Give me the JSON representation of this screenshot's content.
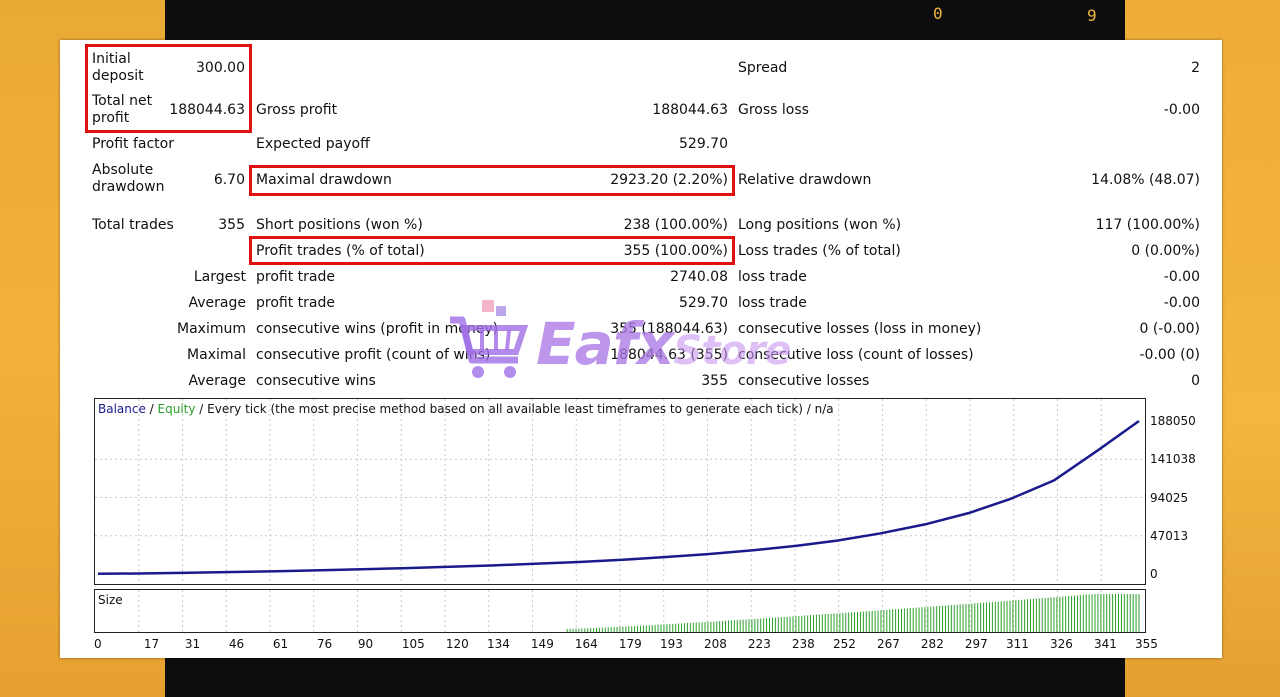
{
  "background": {
    "accent": "#f2b23b",
    "glyphs": [
      "0",
      "9"
    ]
  },
  "watermark": {
    "brand": "Eafx",
    "suffix": "Store"
  },
  "report": {
    "initial_deposit_label": "Initial deposit",
    "initial_deposit": "300.00",
    "spread_label": "Spread",
    "spread": "2",
    "total_net_profit_label": "Total net profit",
    "total_net_profit": "188044.63",
    "gross_profit_label": "Gross profit",
    "gross_profit": "188044.63",
    "gross_loss_label": "Gross loss",
    "gross_loss": "-0.00",
    "profit_factor_label": "Profit factor",
    "profit_factor": "",
    "expected_payoff_label": "Expected payoff",
    "expected_payoff": "529.70",
    "absolute_drawdown_label": "Absolute drawdown",
    "absolute_drawdown": "6.70",
    "maximal_drawdown_label": "Maximal drawdown",
    "maximal_drawdown": "2923.20 (2.20%)",
    "relative_drawdown_label": "Relative drawdown",
    "relative_drawdown": "14.08% (48.07)",
    "total_trades_label": "Total trades",
    "total_trades": "355",
    "short_positions_label": "Short positions (won %)",
    "short_positions": "238 (100.00%)",
    "long_positions_label": "Long positions (won %)",
    "long_positions": "117 (100.00%)",
    "profit_trades_label": "Profit trades (% of total)",
    "profit_trades": "355 (100.00%)",
    "loss_trades_label": "Loss trades (% of total)",
    "loss_trades": "0 (0.00%)",
    "largest_label": "Largest",
    "largest_profit_label": "profit trade",
    "largest_profit": "2740.08",
    "largest_loss_label": "loss trade",
    "largest_loss": "-0.00",
    "average_label": "Average",
    "average_profit_label": "profit trade",
    "average_profit": "529.70",
    "average_loss_label": "loss trade",
    "average_loss": "-0.00",
    "maximum_label": "Maximum",
    "max_cons_wins_label": "consecutive wins (profit in money)",
    "max_cons_wins": "355 (188044.63)",
    "max_cons_losses_label": "consecutive losses (loss in money)",
    "max_cons_losses": "0 (-0.00)",
    "maximal_label": "Maximal",
    "maximal_cons_profit_label": "consecutive profit (count of wins)",
    "maximal_cons_profit": "188044.63 (355)",
    "maximal_cons_loss_label": "consecutive loss (count of losses)",
    "maximal_cons_loss": "-0.00 (0)",
    "average2_label": "Average",
    "avg_cons_wins_label": "consecutive wins",
    "avg_cons_wins": "355",
    "avg_cons_losses_label": "consecutive losses",
    "avg_cons_losses": "0"
  },
  "chart_data": [
    {
      "type": "line",
      "legend_balance": "Balance",
      "legend_sep": " / ",
      "legend_equity": "Equity",
      "legend_rest": " / Every tick (the most precise method based on all available least timeframes to generate each tick) / n/a",
      "colors": {
        "balance": "#1a1a8c",
        "equity": "#2aa02a"
      },
      "ylim": [
        0,
        188050
      ],
      "yticks": [
        "188050",
        "141038",
        "94025",
        "47013",
        "0"
      ],
      "grid": true,
      "series": [
        {
          "name": "Balance",
          "x": [
            0,
            17,
            31,
            46,
            61,
            76,
            90,
            105,
            120,
            134,
            149,
            164,
            179,
            193,
            208,
            223,
            238,
            252,
            267,
            282,
            297,
            311,
            326,
            341,
            355
          ],
          "values": [
            300,
            750,
            1500,
            2500,
            3500,
            4600,
            5900,
            7300,
            8800,
            10500,
            12500,
            14800,
            17500,
            20800,
            24500,
            29000,
            34500,
            41000,
            50000,
            61000,
            75000,
            92000,
            115000,
            152000,
            188044
          ]
        }
      ]
    },
    {
      "type": "bar",
      "label": "Size",
      "color": "#2aa02a",
      "xticks": [
        "0",
        "17",
        "31",
        "46",
        "61",
        "76",
        "90",
        "105",
        "120",
        "134",
        "149",
        "164",
        "179",
        "193",
        "208",
        "223",
        "238",
        "252",
        "267",
        "282",
        "297",
        "311",
        "326",
        "341",
        "355"
      ],
      "size_start_trade": 160,
      "size_range": [
        0,
        1
      ]
    }
  ]
}
